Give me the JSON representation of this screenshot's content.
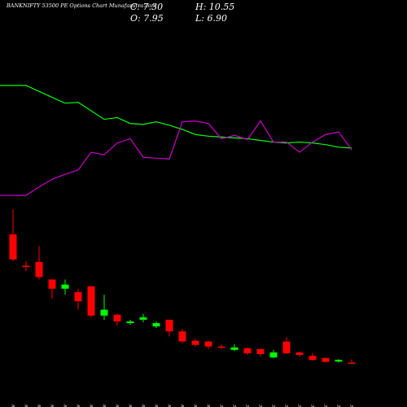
{
  "chart_data": {
    "type": "candlestick",
    "title": "BANKNIFTY 53500  PE Options  Chart Munafasutra.com",
    "close_label": "C: 7.30",
    "high_label": "H: 10.55",
    "open_label": "O: 7.95",
    "low_label": "L: 6.90",
    "up_color": "#00ff00",
    "down_color": "#ff0000",
    "categories": [
      "07 Nov",
      "08 Nov",
      "11 Nov",
      "12 Nov",
      "13 Nov",
      "14 Nov",
      "18 Nov",
      "19 Nov",
      "20 Nov",
      "21 Nov",
      "22 Nov",
      "25 Nov",
      "26 Nov",
      "27 Nov",
      "28 Nov",
      "29 Nov",
      "02 Dec",
      "03 Dec",
      "04 Dec",
      "05 Dec",
      "06 Dec",
      "09 Dec",
      "10 Dec",
      "11 Dec",
      "12 Dec",
      "13 Dec",
      "16 Dec"
    ],
    "open": [
      110,
      85,
      88,
      74,
      66.7,
      64,
      68.7,
      45.3,
      46,
      39.3,
      42,
      36.7,
      42,
      32.7,
      25.3,
      24.7,
      20.7,
      18,
      19.3,
      18.7,
      12,
      24.7,
      16,
      13.3,
      11.5,
      8.7,
      7.95
    ],
    "high": [
      130,
      88.7,
      100.7,
      74,
      74,
      66.7,
      68.7,
      62,
      46.7,
      42,
      46.7,
      40.7,
      42,
      34.7,
      26.7,
      25.3,
      22,
      22.7,
      20,
      18.7,
      18,
      28,
      16.7,
      15.3,
      12,
      10.7,
      10.55
    ],
    "low": [
      88.7,
      80.7,
      74,
      58.7,
      62,
      50,
      44,
      42,
      37.3,
      38,
      40,
      35.3,
      28.7,
      23.3,
      20.7,
      18.7,
      18.7,
      17.3,
      14,
      12.7,
      11.3,
      14.7,
      12.7,
      9.3,
      8,
      8,
      6.9
    ],
    "close": [
      90,
      84,
      76,
      66.7,
      70,
      56.7,
      45.3,
      50,
      40.7,
      40.7,
      44,
      39.3,
      32.7,
      24.7,
      22,
      20.7,
      20,
      20,
      15.3,
      14.7,
      16,
      15.3,
      14,
      10,
      8.5,
      10,
      7.3
    ],
    "lines": [
      {
        "color": "#00ff00",
        "values": [
          195,
          195,
          188,
          181,
          174,
          175,
          165,
          155,
          157,
          150,
          149,
          152,
          148,
          143,
          137,
          135,
          134,
          133,
          132,
          130,
          128,
          127,
          128,
          127,
          125,
          122,
          121
        ]
      },
      {
        "color": "#cc00cc",
        "values": [
          65,
          65,
          75,
          84,
          90,
          95,
          116,
          113,
          127,
          132,
          110,
          109,
          108,
          152,
          153,
          150,
          132,
          136,
          131,
          153,
          128,
          128,
          116,
          128,
          137,
          140,
          119
        ]
      }
    ]
  }
}
